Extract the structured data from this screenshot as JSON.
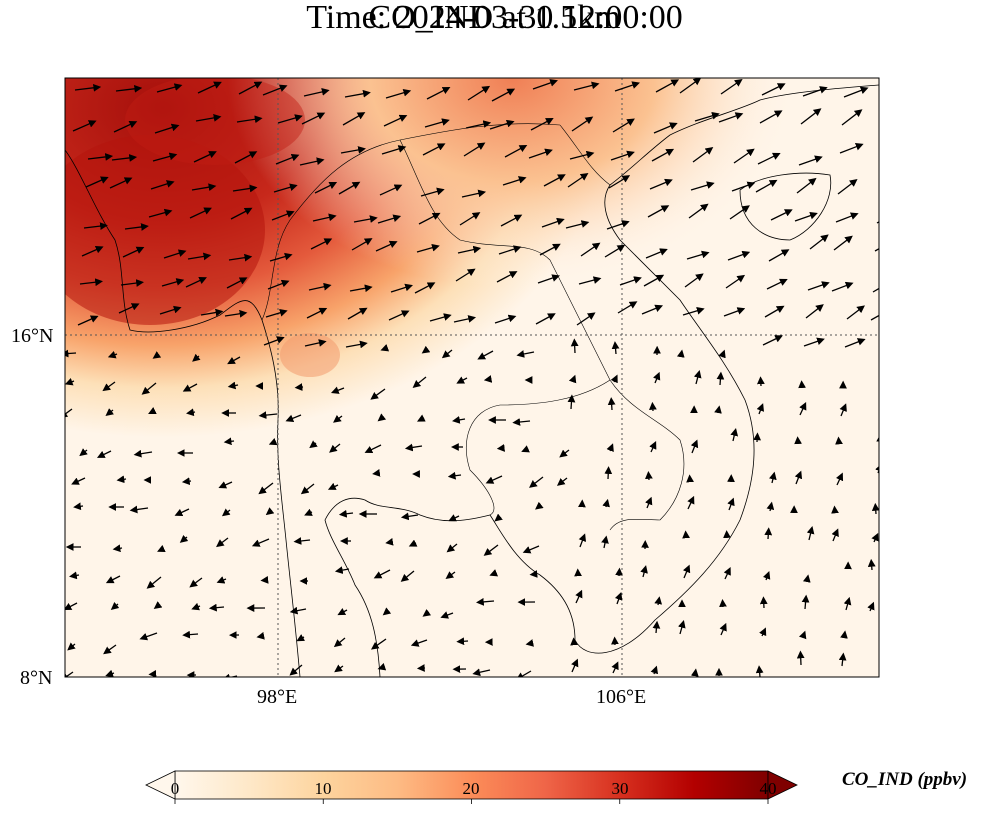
{
  "title": {
    "line1": "CO_IND at 1.5km",
    "line2": "Time: 2024-03-30 12:00:00"
  },
  "map": {
    "variable": "CO_IND",
    "level": "1.5km",
    "projection": "PlateCarree",
    "lat_ticks": [
      "16°N",
      "8°N"
    ],
    "lon_ticks": [
      "98°E",
      "106°E"
    ],
    "gridlines": "dotted",
    "features": [
      "coastlines",
      "country-borders",
      "wind-vectors"
    ],
    "field_note": "high values (30-40 ppbv) over Myanmar/Andaman Sea in northwest, decreasing to near 0 in south and east"
  },
  "colorbar": {
    "label": "CO_IND (ppbv)",
    "ticks": [
      "0",
      "10",
      "20",
      "30",
      "40"
    ],
    "min": 0,
    "max": 40,
    "colormap": "OrRd",
    "extend": "both",
    "colors": [
      "#fff7ec",
      "#fee8c8",
      "#fdd49e",
      "#fdbb84",
      "#fc8d59",
      "#ef6548",
      "#d7301f",
      "#b30000",
      "#7f0000"
    ]
  }
}
